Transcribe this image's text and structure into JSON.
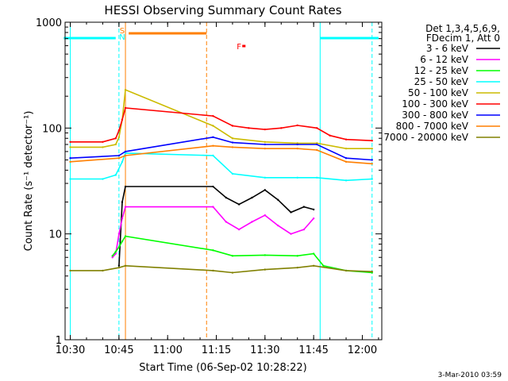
{
  "chart_data": {
    "type": "line",
    "title": "HESSI Observing Summary Count Rates",
    "xlabel": "Start Time (06-Sep-02 10:28:22)",
    "ylabel": "Count Rate (s⁻¹ detector⁻¹)",
    "yscale": "log",
    "ylim": [
      1,
      1000
    ],
    "xlim_minutes_after_1030": [
      -1.6,
      96
    ],
    "x_ticks": [
      "10:30",
      "10:45",
      "11:00",
      "11:15",
      "11:30",
      "11:45",
      "12:00"
    ],
    "y_ticks": [
      "1",
      "10",
      "100",
      "1000"
    ],
    "legend_header": [
      "Det 1,3,4,5,6,9,",
      "FDecim 1, Att 0"
    ],
    "legend_position": "right",
    "footer_date": "3-Mar-2010 03:59",
    "flag_marks": {
      "saa_label": "S",
      "night_label": "N",
      "flare_label": "F",
      "colors": {
        "saa": "#ff7f00",
        "night": "#00ffff",
        "flare": "#ff0000"
      }
    },
    "series": [
      {
        "name": "3 - 6 keV",
        "color": "#000000",
        "x": [
          "10:45",
          "10:46",
          "10:47",
          "11:14",
          "11:18",
          "11:22",
          "11:26",
          "11:30",
          "11:34",
          "11:38",
          "11:42",
          "11:45"
        ],
        "values": [
          5,
          20,
          28,
          28,
          22,
          19,
          22,
          26,
          21,
          16,
          18,
          17
        ]
      },
      {
        "name": "6 - 12 keV",
        "color": "#ff00ff",
        "x": [
          "10:43",
          "10:44",
          "10:45",
          "10:46",
          "10:47",
          "11:14",
          "11:18",
          "11:22",
          "11:26",
          "11:30",
          "11:34",
          "11:38",
          "11:42",
          "11:45"
        ],
        "values": [
          6,
          6.5,
          10,
          14,
          18,
          18,
          13,
          11,
          13,
          15,
          12,
          10,
          11,
          14
        ]
      },
      {
        "name": "12 - 25 keV",
        "color": "#00ff00",
        "x": [
          "10:43",
          "10:44",
          "10:45",
          "10:46",
          "10:47",
          "11:14",
          "11:20",
          "11:30",
          "11:40",
          "11:45",
          "11:48",
          "11:55",
          "12:03"
        ],
        "values": [
          6.2,
          6.8,
          7.5,
          8.5,
          9.5,
          7,
          6.2,
          6.3,
          6.2,
          6.5,
          5,
          4.5,
          4.3
        ]
      },
      {
        "name": "25 - 50 keV",
        "color": "#00ffff",
        "x": [
          "10:30",
          "10:40",
          "10:44",
          "10:46",
          "10:47",
          "11:14",
          "11:20",
          "11:30",
          "11:40",
          "11:46",
          "11:55",
          "12:03"
        ],
        "values": [
          33,
          33,
          36,
          48,
          58,
          55,
          37,
          34,
          34,
          34,
          32,
          33
        ]
      },
      {
        "name": "50 - 100 keV",
        "color": "#ccbb00",
        "x": [
          "10:30",
          "10:40",
          "10:44",
          "10:45",
          "10:46",
          "10:47",
          "11:14",
          "11:20",
          "11:30",
          "11:40",
          "11:46",
          "11:55",
          "12:03"
        ],
        "values": [
          66,
          66,
          70,
          82,
          120,
          230,
          105,
          80,
          74,
          72,
          72,
          64,
          64
        ]
      },
      {
        "name": "100 - 300 keV",
        "color": "#ff0000",
        "x": [
          "10:30",
          "10:40",
          "10:44",
          "10:45",
          "10:46",
          "10:47",
          "11:14",
          "11:20",
          "11:25",
          "11:30",
          "11:35",
          "11:40",
          "11:46",
          "11:50",
          "11:55",
          "12:03"
        ],
        "values": [
          74,
          74,
          80,
          95,
          120,
          155,
          130,
          105,
          100,
          97,
          100,
          106,
          100,
          85,
          78,
          76
        ]
      },
      {
        "name": "300 - 800 keV",
        "color": "#0000ff",
        "x": [
          "10:30",
          "10:45",
          "10:47",
          "11:14",
          "11:20",
          "11:30",
          "11:40",
          "11:46",
          "11:55",
          "12:03"
        ],
        "values": [
          52,
          55,
          60,
          82,
          73,
          70,
          70,
          70,
          52,
          50
        ]
      },
      {
        "name": "800 - 7000 keV",
        "color": "#ff7f00",
        "x": [
          "10:30",
          "10:45",
          "10:47",
          "11:14",
          "11:20",
          "11:30",
          "11:40",
          "11:46",
          "11:55",
          "12:03"
        ],
        "values": [
          48,
          52,
          55,
          68,
          66,
          64,
          64,
          62,
          48,
          46
        ]
      },
      {
        "name": "7000 - 20000 keV",
        "color": "#808000",
        "x": [
          "10:30",
          "10:40",
          "10:45",
          "10:47",
          "11:14",
          "11:20",
          "11:30",
          "11:40",
          "11:45",
          "11:55",
          "12:03"
        ],
        "values": [
          4.5,
          4.5,
          4.8,
          5,
          4.5,
          4.3,
          4.6,
          4.8,
          5,
          4.5,
          4.4
        ]
      }
    ]
  }
}
